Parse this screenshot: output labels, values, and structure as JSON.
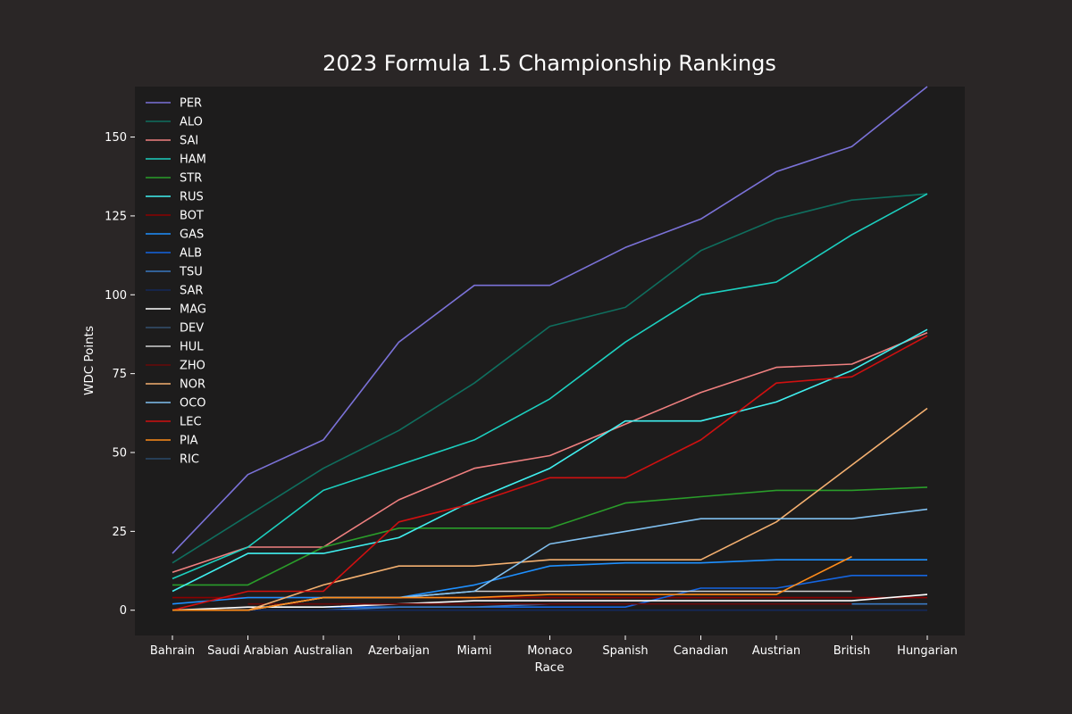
{
  "chart_data": {
    "type": "line",
    "title": "2023 Formula 1.5 Championship Rankings",
    "xlabel": "Race",
    "ylabel": "WDC Points",
    "categories": [
      "Bahrain",
      "Saudi Arabian",
      "Australian",
      "Azerbaijan",
      "Miami",
      "Monaco",
      "Spanish",
      "Canadian",
      "Austrian",
      "British",
      "Hungarian"
    ],
    "ylim": [
      -8,
      166
    ],
    "yticks": [
      0,
      25,
      50,
      75,
      100,
      125,
      150
    ],
    "grid": false,
    "legend_position": "top-left",
    "series": [
      {
        "name": "PER",
        "color": "#7b72d8",
        "values": [
          18,
          43,
          54,
          85,
          103,
          103,
          115,
          124,
          139,
          147,
          166
        ]
      },
      {
        "name": "ALO",
        "color": "#0f6e5e",
        "values": [
          15,
          30,
          45,
          57,
          72,
          90,
          96,
          114,
          124,
          130,
          132
        ]
      },
      {
        "name": "SAI",
        "color": "#f08080",
        "values": [
          12,
          20,
          20,
          35,
          45,
          49,
          59,
          69,
          77,
          78,
          88
        ]
      },
      {
        "name": "HAM",
        "color": "#1ccfbf",
        "values": [
          10,
          20,
          38,
          46,
          54,
          67,
          85,
          100,
          104,
          119,
          132
        ]
      },
      {
        "name": "STR",
        "color": "#2a9d2a",
        "values": [
          8,
          8,
          20,
          26,
          26,
          26,
          34,
          36,
          38,
          38,
          39
        ]
      },
      {
        "name": "RUS",
        "color": "#40f0f0",
        "values": [
          6,
          18,
          18,
          23,
          35,
          45,
          60,
          60,
          66,
          76,
          89
        ]
      },
      {
        "name": "BOT",
        "color": "#8b0000",
        "values": [
          4,
          4,
          4,
          4,
          4,
          4,
          4,
          4,
          4,
          4,
          4
        ]
      },
      {
        "name": "GAS",
        "color": "#1e90ff",
        "values": [
          2,
          4,
          4,
          4,
          8,
          14,
          15,
          15,
          16,
          16,
          16
        ]
      },
      {
        "name": "ALB",
        "color": "#1565e0",
        "values": [
          null,
          null,
          1,
          1,
          1,
          1,
          1,
          7,
          7,
          11,
          11
        ]
      },
      {
        "name": "TSU",
        "color": "#3a78c0",
        "values": [
          0,
          0,
          0,
          1,
          1,
          2,
          2,
          2,
          2,
          2,
          2
        ]
      },
      {
        "name": "SAR",
        "color": "#14285a",
        "values": [
          0,
          0,
          0,
          0,
          0,
          0,
          0,
          0,
          0,
          0,
          0
        ]
      },
      {
        "name": "MAG",
        "color": "#ffffff",
        "values": [
          0,
          1,
          1,
          2,
          3,
          3,
          3,
          3,
          3,
          3,
          5
        ]
      },
      {
        "name": "DEV",
        "color": "#34506e",
        "values": [
          null,
          null,
          null,
          null,
          null,
          null,
          null,
          null,
          null,
          null,
          null
        ]
      },
      {
        "name": "HUL",
        "color": "#d0d0d0",
        "values": [
          0,
          0,
          4,
          4,
          6,
          6,
          6,
          6,
          6,
          6,
          null
        ]
      },
      {
        "name": "ZHO",
        "color": "#6a0808",
        "values": [
          null,
          2,
          2,
          2,
          2,
          2,
          2,
          2,
          2,
          2,
          null
        ]
      },
      {
        "name": "NOR",
        "color": "#f4b070",
        "values": [
          0,
          0,
          8,
          14,
          14,
          16,
          16,
          16,
          28,
          46,
          64
        ]
      },
      {
        "name": "OCO",
        "color": "#80c0f0",
        "values": [
          0,
          0,
          4,
          4,
          6,
          21,
          25,
          29,
          29,
          29,
          32
        ]
      },
      {
        "name": "LEC",
        "color": "#d01010",
        "values": [
          0,
          6,
          6,
          28,
          34,
          42,
          42,
          54,
          72,
          74,
          87
        ]
      },
      {
        "name": "PIA",
        "color": "#ff8c1a",
        "values": [
          0,
          0,
          4,
          4,
          4,
          5,
          5,
          5,
          5,
          17,
          null
        ]
      },
      {
        "name": "RIC",
        "color": "#2a4a6a",
        "values": [
          null,
          null,
          null,
          null,
          null,
          null,
          null,
          null,
          null,
          null,
          2
        ]
      }
    ]
  }
}
